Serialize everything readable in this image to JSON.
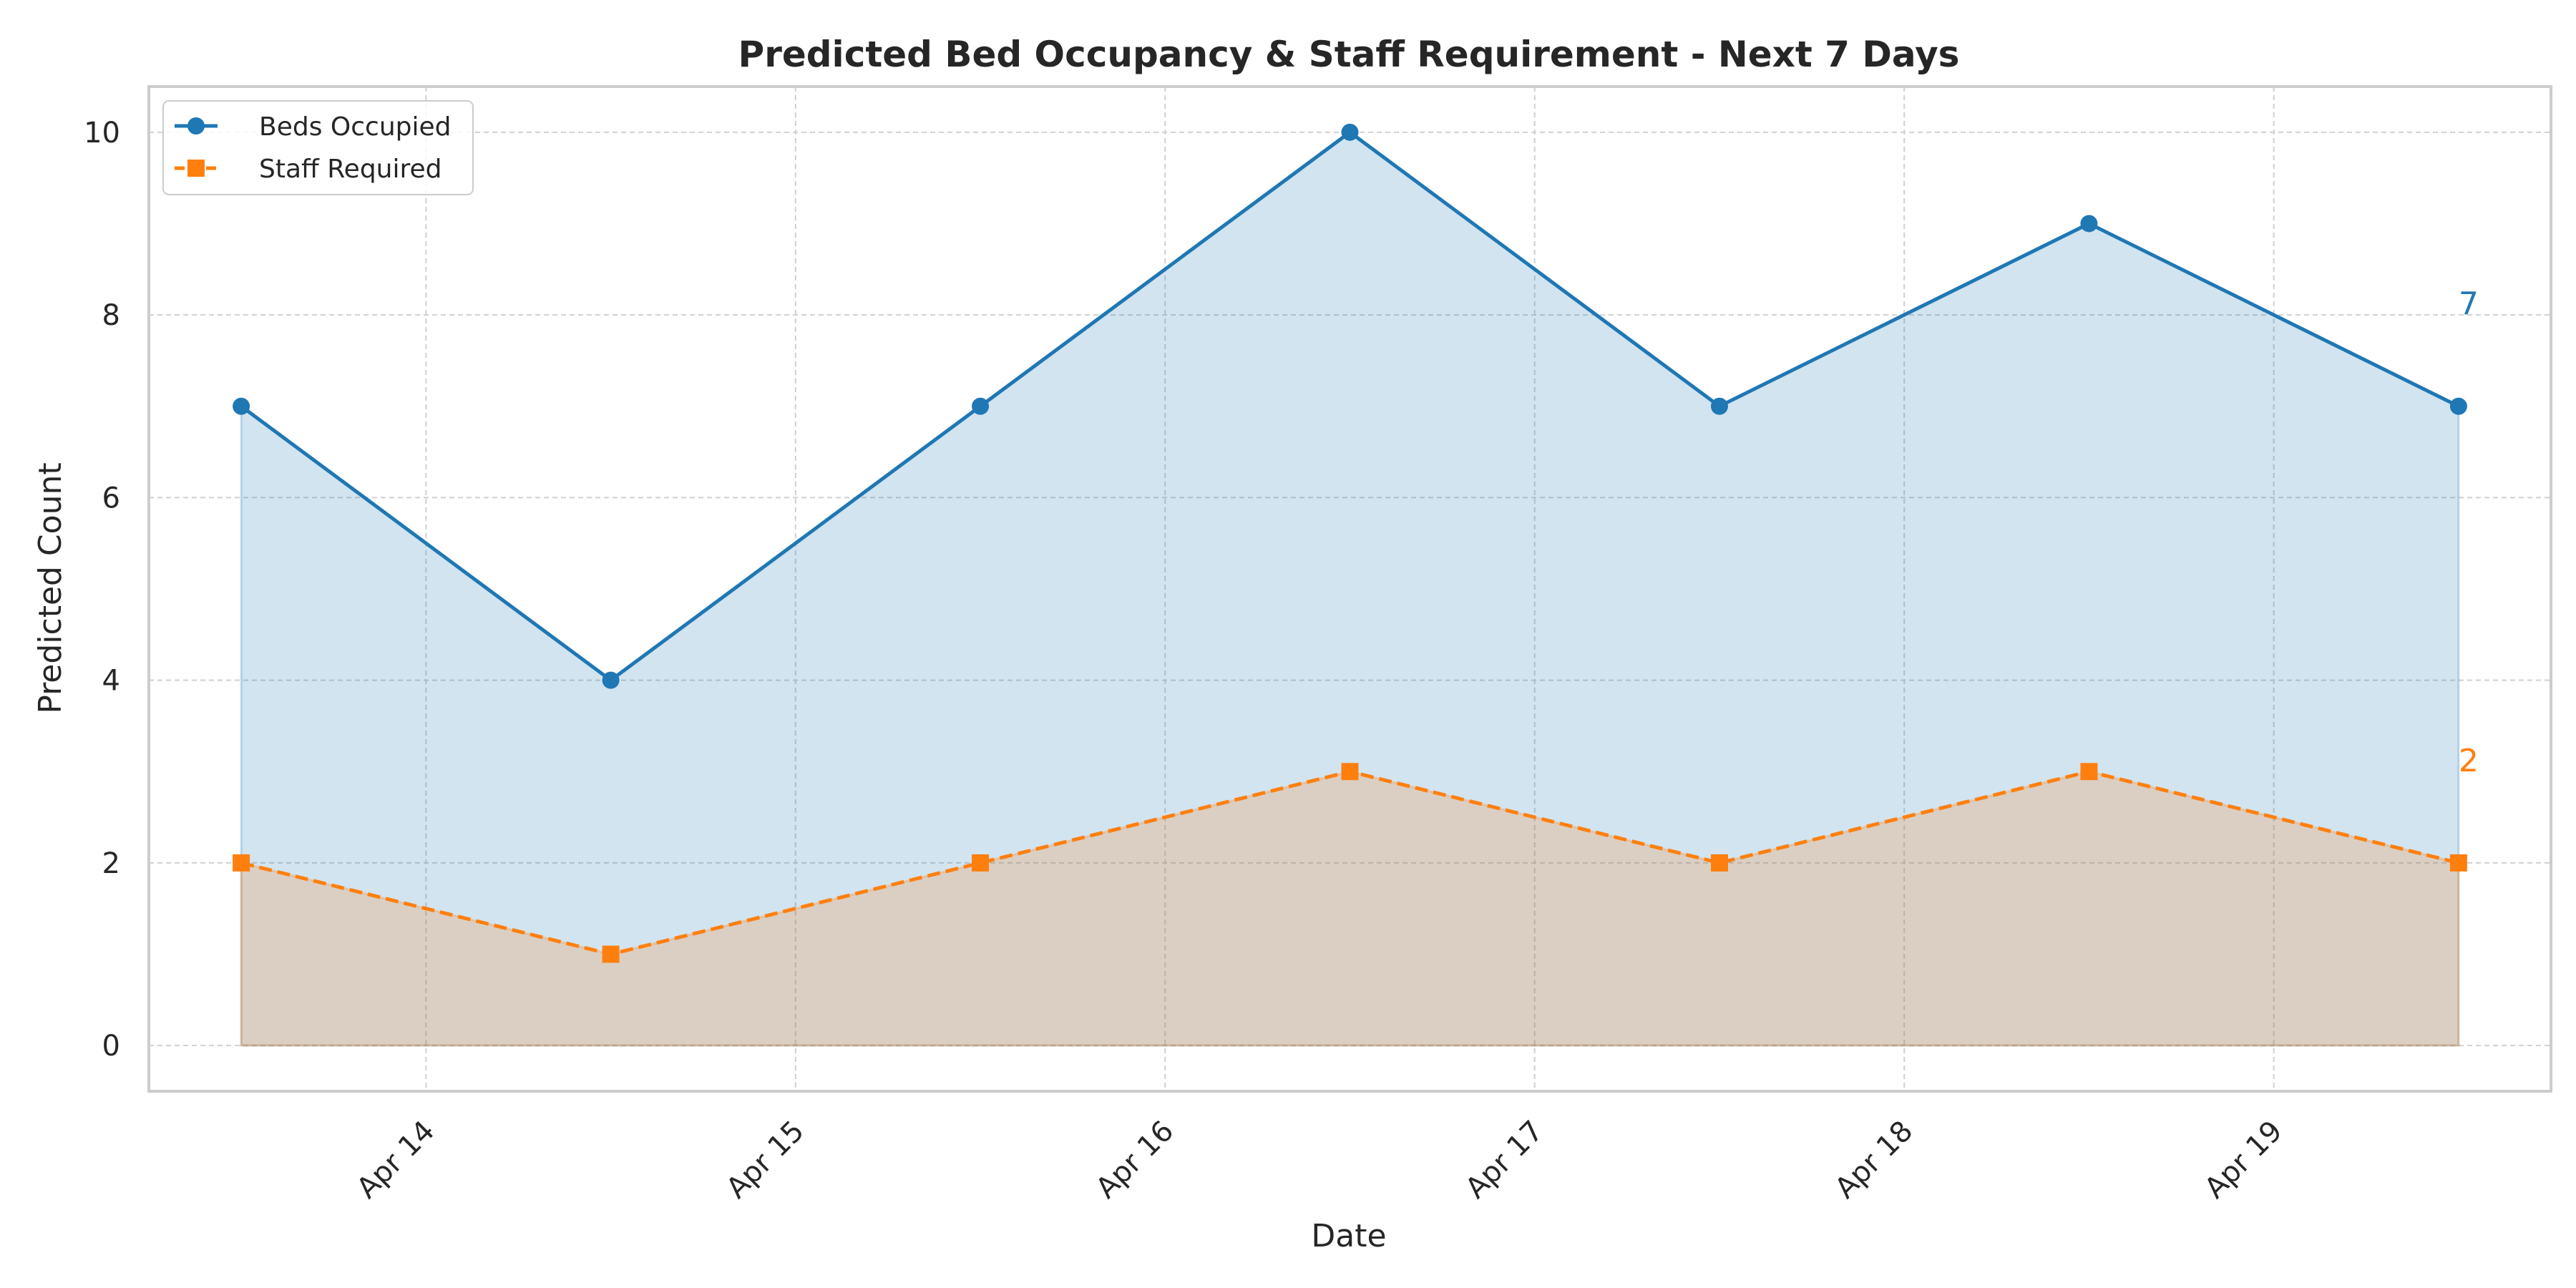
{
  "chart_data": {
    "type": "line",
    "title": "Predicted Bed Occupancy & Staff Requirement - Next 7 Days",
    "xlabel": "Date",
    "ylabel": "Predicted Count",
    "x": [
      "2025-04-13T12:00",
      "2025-04-14T12:00",
      "2025-04-15T12:00",
      "2025-04-16T12:00",
      "2025-04-17T12:00",
      "2025-04-18T12:00",
      "2025-04-19T12:00"
    ],
    "xlim": [
      "2025-04-13T06:00",
      "2025-04-19T18:00"
    ],
    "x_ticks": [
      {
        "date": "2025-04-14T00:00",
        "label": "Apr 14"
      },
      {
        "date": "2025-04-15T00:00",
        "label": "Apr 15"
      },
      {
        "date": "2025-04-16T00:00",
        "label": "Apr 16"
      },
      {
        "date": "2025-04-17T00:00",
        "label": "Apr 17"
      },
      {
        "date": "2025-04-18T00:00",
        "label": "Apr 18"
      },
      {
        "date": "2025-04-19T00:00",
        "label": "Apr 19"
      }
    ],
    "ylim": [
      -0.5,
      10.5
    ],
    "y_ticks": [
      0,
      2,
      4,
      6,
      8,
      10
    ],
    "grid": true,
    "legend_position": "top-left",
    "series": [
      {
        "name": "Beds Occupied",
        "values": [
          7,
          4,
          7,
          10,
          7,
          9,
          7
        ],
        "color": "#1f77b4",
        "marker": "circle",
        "line_style": "solid",
        "fill_area": true,
        "end_label": "7"
      },
      {
        "name": "Staff Required",
        "values": [
          2,
          1,
          2,
          3,
          2,
          3,
          2
        ],
        "color": "#ff7f0e",
        "marker": "square",
        "line_style": "dashed",
        "fill_area": true,
        "end_label": "2"
      }
    ]
  }
}
